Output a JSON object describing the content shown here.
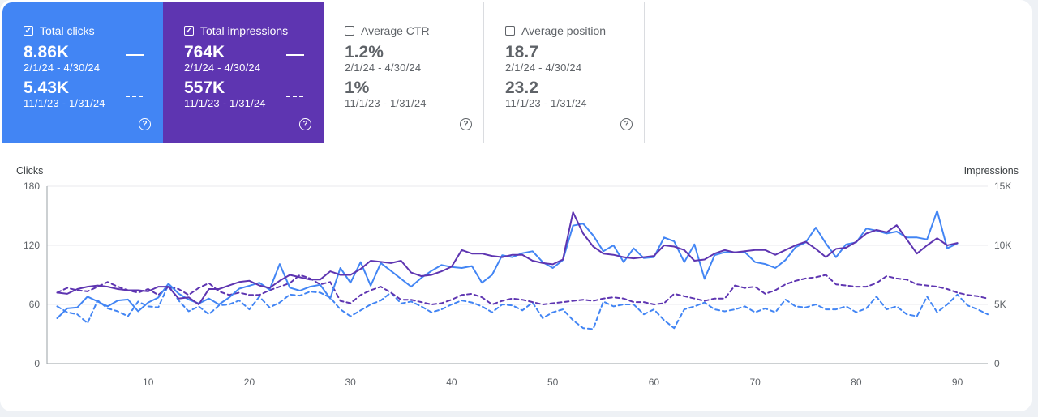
{
  "metrics": [
    {
      "name": "Total clicks",
      "checked": true,
      "current": "8.86K",
      "current_range": "2/1/24 - 4/30/24",
      "previous": "5.43K",
      "previous_range": "11/1/23 - 1/31/24"
    },
    {
      "name": "Total impressions",
      "checked": true,
      "current": "764K",
      "current_range": "2/1/24 - 4/30/24",
      "previous": "557K",
      "previous_range": "11/1/23 - 1/31/24"
    },
    {
      "name": "Average CTR",
      "checked": false,
      "current": "1.2%",
      "current_range": "2/1/24 - 4/30/24",
      "previous": "1%",
      "previous_range": "11/1/23 - 1/31/24"
    },
    {
      "name": "Average position",
      "checked": false,
      "current": "18.7",
      "current_range": "2/1/24 - 4/30/24",
      "previous": "23.2",
      "previous_range": "11/1/23 - 1/31/24"
    }
  ],
  "colors": {
    "clicks": "#4285f4",
    "impressions": "#5e35b1",
    "grid": "#e8eaed",
    "axis": "#5f6368"
  },
  "chart_data": {
    "type": "line",
    "ylabel_left": "Clicks",
    "ylabel_right": "Impressions",
    "y_left_ticks": [
      "0",
      "60",
      "120",
      "180"
    ],
    "y_left_lim": [
      0,
      180
    ],
    "y_right_ticks": [
      "0",
      "5K",
      "10K",
      "15K"
    ],
    "y_right_lim": [
      0,
      15000
    ],
    "x_ticks": [
      10,
      20,
      30,
      40,
      50,
      60,
      70,
      80,
      90
    ],
    "x_lim": [
      0,
      93
    ],
    "grid": true,
    "series": [
      {
        "name": "Total clicks",
        "axis": "left",
        "style": "solid",
        "color": "#4285f4",
        "x_start": 1,
        "values": [
          46,
          56,
          57,
          68,
          63,
          58,
          64,
          65,
          53,
          62,
          67,
          81,
          71,
          65,
          61,
          66,
          60,
          67,
          76,
          79,
          82,
          75,
          101,
          77,
          74,
          78,
          80,
          66,
          97,
          82,
          103,
          79,
          102,
          94,
          86,
          78,
          87,
          94,
          100,
          98,
          97,
          99,
          82,
          90,
          110,
          108,
          112,
          114,
          103,
          97,
          105,
          140,
          142,
          130,
          114,
          120,
          103,
          117,
          107,
          108,
          128,
          124,
          103,
          121,
          86,
          110,
          113,
          113,
          113,
          103,
          101,
          97,
          105,
          118,
          123,
          138,
          122,
          108,
          121,
          123,
          137,
          135,
          132,
          134,
          128,
          128,
          126,
          155,
          117,
          122
        ]
      },
      {
        "name": "Total impressions",
        "axis": "right",
        "style": "solid",
        "color": "#5e35b1",
        "x_start": 1,
        "values": [
          6000,
          5900,
          6300,
          6500,
          6600,
          6500,
          6300,
          6200,
          6200,
          6100,
          6500,
          6500,
          5500,
          5600,
          5000,
          6300,
          6300,
          6600,
          6900,
          7000,
          6600,
          6400,
          7000,
          7500,
          7300,
          7100,
          7100,
          7800,
          7500,
          7500,
          8000,
          8700,
          8600,
          8500,
          8700,
          7700,
          7400,
          7500,
          7800,
          8200,
          9600,
          9300,
          9300,
          9100,
          9000,
          9200,
          9200,
          8700,
          8500,
          8400,
          8800,
          12800,
          11000,
          9900,
          9300,
          9200,
          9000,
          8900,
          9000,
          9100,
          10000,
          9900,
          9600,
          8700,
          8800,
          9300,
          9600,
          9400,
          9500,
          9600,
          9600,
          9200,
          9600,
          10000,
          10300,
          9700,
          9000,
          9700,
          9800,
          10300,
          11000,
          11300,
          11100,
          11700,
          10500,
          9300,
          10000,
          10600,
          10000,
          10200
        ]
      },
      {
        "name": "Total clicks (previous)",
        "axis": "left",
        "style": "dashed",
        "color": "#4285f4",
        "x_start": 1,
        "values": [
          58,
          52,
          50,
          41,
          64,
          56,
          53,
          48,
          63,
          58,
          57,
          80,
          64,
          53,
          58,
          50,
          59,
          60,
          64,
          55,
          68,
          57,
          62,
          70,
          69,
          73,
          72,
          67,
          55,
          48,
          54,
          60,
          64,
          72,
          61,
          63,
          58,
          52,
          55,
          60,
          64,
          62,
          58,
          52,
          60,
          59,
          54,
          62,
          46,
          52,
          55,
          44,
          36,
          35,
          63,
          58,
          60,
          60,
          50,
          55,
          44,
          36,
          55,
          58,
          62,
          55,
          53,
          55,
          58,
          52,
          56,
          52,
          65,
          58,
          57,
          60,
          55,
          55,
          58,
          52,
          56,
          68,
          55,
          58,
          50,
          48,
          68,
          52,
          60,
          70,
          59,
          55,
          50
        ]
      },
      {
        "name": "Total impressions (previous)",
        "axis": "right",
        "style": "dashed",
        "color": "#5e35b1",
        "x_start": 1,
        "values": [
          6000,
          6400,
          6200,
          6100,
          6500,
          6900,
          6500,
          6200,
          6000,
          6300,
          5800,
          6500,
          6300,
          5800,
          6400,
          6800,
          6100,
          5800,
          6000,
          5800,
          5800,
          6200,
          6500,
          6800,
          7500,
          7200,
          6700,
          6900,
          5300,
          5100,
          5800,
          6200,
          6500,
          6000,
          5400,
          5400,
          5200,
          5000,
          5100,
          5400,
          5800,
          5900,
          5600,
          5000,
          5300,
          5500,
          5400,
          5200,
          5000,
          5100,
          5200,
          5300,
          5400,
          5300,
          5500,
          5600,
          5500,
          5200,
          5200,
          5000,
          5100,
          5900,
          5700,
          5500,
          5300,
          5500,
          5500,
          6600,
          6400,
          6500,
          5900,
          6200,
          6700,
          7000,
          7200,
          7300,
          7500,
          6700,
          6600,
          6500,
          6500,
          6800,
          7400,
          7200,
          7100,
          6700,
          6600,
          6500,
          6300,
          6000,
          5800,
          5700,
          5500
        ]
      }
    ]
  }
}
